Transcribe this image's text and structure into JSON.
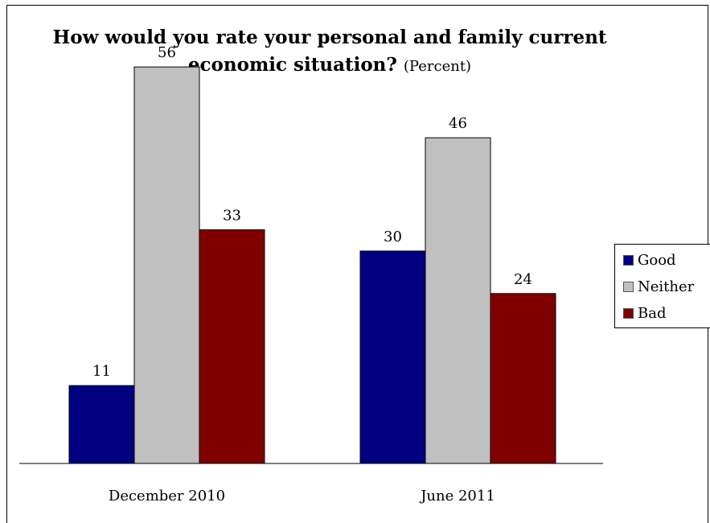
{
  "chart_data": {
    "type": "bar",
    "title": "How would you rate your personal and family current economic situation?",
    "subtitle": "(Percent)",
    "categories": [
      "December 2010",
      "June 2011"
    ],
    "series": [
      {
        "name": "Good",
        "values": [
          11,
          30
        ],
        "color": "#000080"
      },
      {
        "name": "Neither",
        "values": [
          56,
          46
        ],
        "color": "#c0c0c0"
      },
      {
        "name": "Bad",
        "values": [
          33,
          24
        ],
        "color": "#800000"
      }
    ],
    "ylim": [
      0,
      60
    ],
    "grid": false,
    "legend": "right"
  }
}
